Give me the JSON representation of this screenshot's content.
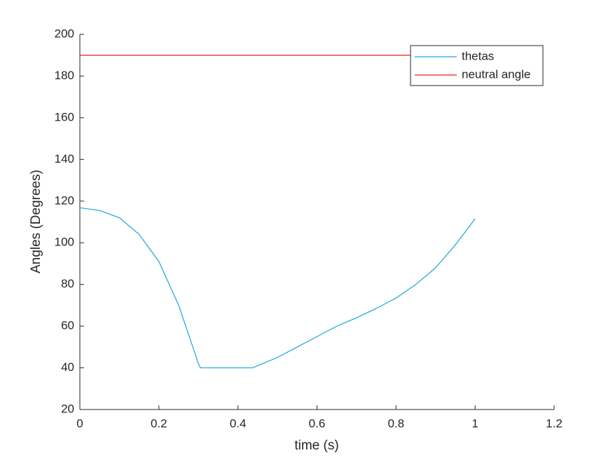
{
  "chart_data": {
    "type": "line",
    "xlabel": "time (s)",
    "ylabel": "Angles (Degrees)",
    "xlim": [
      0,
      1.2
    ],
    "xticks": [
      0,
      0.2,
      0.4,
      0.6,
      0.8,
      1,
      1.2
    ],
    "ylim": [
      20,
      200
    ],
    "yticks": [
      20,
      40,
      60,
      80,
      100,
      120,
      140,
      160,
      180,
      200
    ],
    "legend": "northeast",
    "series": [
      {
        "name": "thetas",
        "color": "#1aa6d9",
        "x": [
          0,
          0.05,
          0.1,
          0.15,
          0.2,
          0.25,
          0.3,
          0.305,
          0.35,
          0.4,
          0.437,
          0.5,
          0.55,
          0.6,
          0.65,
          0.7,
          0.75,
          0.8,
          0.85,
          0.9,
          0.95,
          1.0
        ],
        "values": [
          116.8,
          115.5,
          112,
          104,
          91,
          70,
          42,
          40,
          40,
          40,
          40,
          45,
          50,
          55,
          60,
          64,
          68.5,
          73.5,
          80,
          88,
          99,
          111.5
        ]
      },
      {
        "name": "neutral angle",
        "color": "#e0201f",
        "x": [
          0,
          1
        ],
        "values": [
          190,
          190
        ]
      }
    ]
  }
}
